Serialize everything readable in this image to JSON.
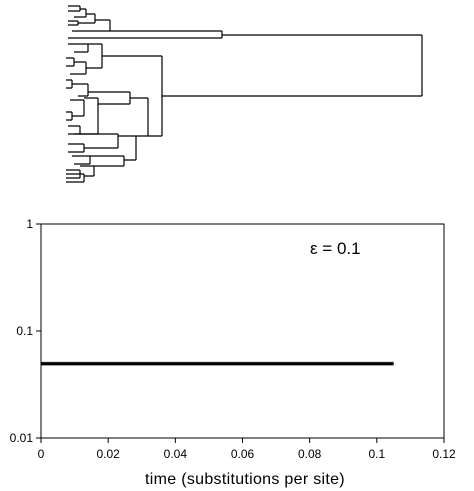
{
  "chart_data": [
    {
      "type": "tree",
      "description_source": "phylogenetic tree drawn without labels or axes"
    },
    {
      "type": "line",
      "title": "",
      "xlabel": "time (substitutions per site)",
      "ylabel": "",
      "xlim": [
        0,
        0.12
      ],
      "ylim": [
        0.01,
        1
      ],
      "y_scale": "log",
      "x_ticks": [
        "0",
        "0.02",
        "0.04",
        "0.06",
        "0.08",
        "0.1",
        "0.12"
      ],
      "y_ticks": [
        "0.01",
        "0.1",
        "1"
      ],
      "annotation": "ε = 0.1",
      "grid": false,
      "series": [
        {
          "x": [
            0,
            0.105
          ],
          "y": [
            0.051,
            0.051
          ],
          "style": "thin"
        },
        {
          "x": [
            0,
            0.105
          ],
          "y": [
            0.05,
            0.05
          ],
          "style": "thin"
        },
        {
          "x": [
            0,
            0.105
          ],
          "y": [
            0.049,
            0.049
          ],
          "style": "thick"
        }
      ]
    }
  ]
}
